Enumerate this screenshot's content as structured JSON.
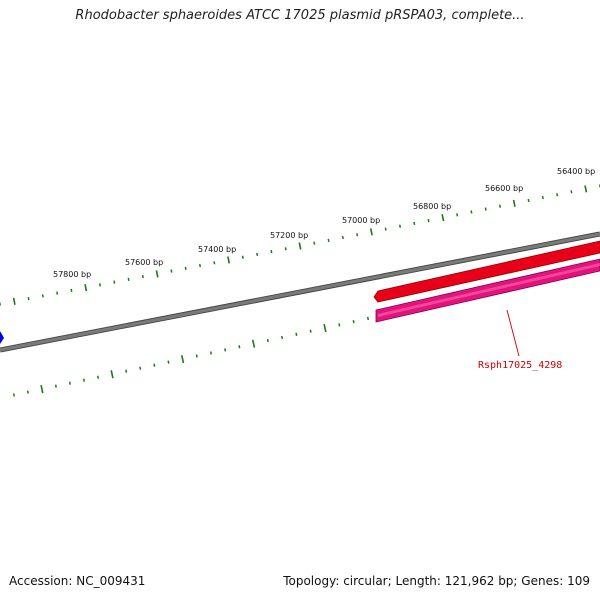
{
  "title": "Rhodobacter sphaeroides ATCC 17025 plasmid pRSPA03, complete...",
  "tick_labels": [
    "57800 bp",
    "57600 bp",
    "57400 bp",
    "57200 bp",
    "57000 bp",
    "56800 bp",
    "56600 bp",
    "56400 bp"
  ],
  "gene": {
    "label": "Rsph17025_4298",
    "feature_color": "#e8001a",
    "cds_color": "#e0147a",
    "label_color": "#cc0000"
  },
  "colors": {
    "backbone": "#7a7a7a",
    "ticks": "#1a7a1a",
    "marker": "#0000ee"
  },
  "footer": {
    "accession_label": "Accession:",
    "accession": "NC_009431",
    "topology_label": "Topology:",
    "topology": "circular;",
    "length_label": "Length:",
    "length": "121,962 bp;",
    "genes_label": "Genes:",
    "genes": "109"
  }
}
